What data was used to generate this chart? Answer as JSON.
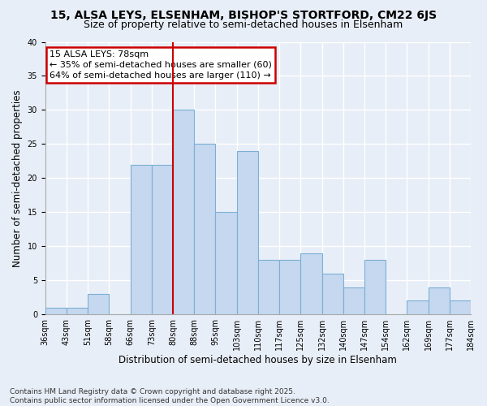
{
  "title": "15, ALSA LEYS, ELSENHAM, BISHOP'S STORTFORD, CM22 6JS",
  "subtitle": "Size of property relative to semi-detached houses in Elsenham",
  "xlabel": "Distribution of semi-detached houses by size in Elsenham",
  "ylabel": "Number of semi-detached properties",
  "footnote1": "Contains HM Land Registry data © Crown copyright and database right 2025.",
  "footnote2": "Contains public sector information licensed under the Open Government Licence v3.0.",
  "bin_labels": [
    "36sqm",
    "43sqm",
    "51sqm",
    "58sqm",
    "66sqm",
    "73sqm",
    "80sqm",
    "88sqm",
    "95sqm",
    "103sqm",
    "110sqm",
    "117sqm",
    "125sqm",
    "132sqm",
    "140sqm",
    "147sqm",
    "154sqm",
    "162sqm",
    "169sqm",
    "177sqm",
    "184sqm"
  ],
  "bar_heights": [
    1,
    1,
    3,
    0,
    22,
    22,
    30,
    25,
    15,
    24,
    8,
    8,
    9,
    6,
    4,
    8,
    0,
    2,
    4,
    2
  ],
  "bar_color": "#c5d8ef",
  "bar_edge_color": "#7bafd4",
  "vline_position": 6,
  "property_label": "15 ALSA LEYS: 78sqm",
  "pct_smaller": 35,
  "n_smaller": 60,
  "pct_larger": 64,
  "n_larger": 110,
  "annotation_box_color": "#cc0000",
  "vline_color": "#cc0000",
  "ylim": [
    0,
    40
  ],
  "yticks": [
    0,
    5,
    10,
    15,
    20,
    25,
    30,
    35,
    40
  ],
  "background_color": "#e8eef7",
  "grid_color": "#ffffff",
  "title_fontsize": 10,
  "subtitle_fontsize": 9,
  "axis_label_fontsize": 8.5,
  "tick_fontsize": 7,
  "annotation_fontsize": 8,
  "footnote_fontsize": 6.5
}
